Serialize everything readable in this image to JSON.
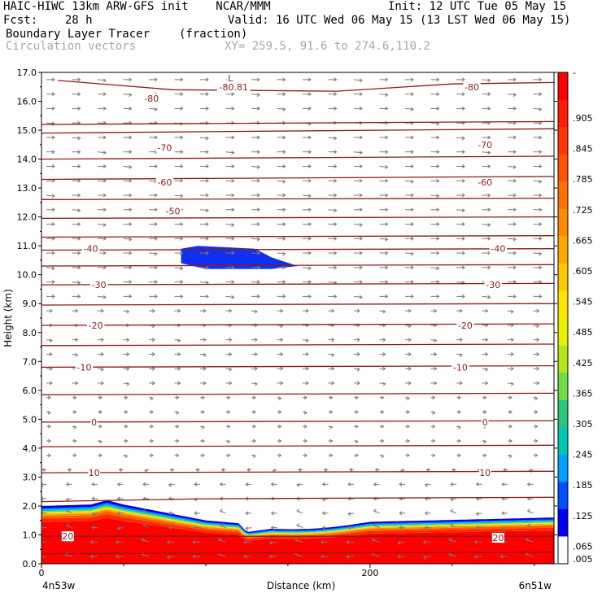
{
  "header": {
    "model_line": "HAIC-HIWC 13km ARW-GFS init    NCAR/MMM",
    "init_line": "Init: 12 UTC Tue 05 May 15",
    "fcst_label": "Fcst:    28 h",
    "valid_line": "Valid: 16 UTC Wed 06 May 15 (13 LST Wed 06 May 15)",
    "field_name": "Boundary Layer Tracer",
    "field_units": "(fraction)",
    "vector_name": "Circulation vectors",
    "xy_line": "XY= 259.5, 91.6 to 274.6,110.2"
  },
  "chart_data": {
    "type": "heatmap",
    "ylabel": "Height (km)",
    "xlabel": "Distance (km)",
    "ylim": [
      0,
      17
    ],
    "xlim": [
      0,
      312
    ],
    "y_ticks": [
      "0.0",
      "1.0",
      "2.0",
      "3.0",
      "4.0",
      "5.0",
      "6.0",
      "7.0",
      "8.0",
      "9.0",
      "10.0",
      "11.0",
      "12.0",
      "13.0",
      "14.0",
      "15.0",
      "16.0",
      "17.0"
    ],
    "x_ticks": [
      {
        "value": 0,
        "label": "0"
      },
      {
        "value": 200,
        "label": "200"
      }
    ],
    "x_end_labels": {
      "left": "4n53w",
      "right": "6n51w"
    },
    "colorbar": {
      "labels": [
        "-",
        ".905",
        ".845",
        ".785",
        ".725",
        ".665",
        ".605",
        ".545",
        ".485",
        ".425",
        ".365",
        ".305",
        ".245",
        ".185",
        ".125",
        ".065",
        ".005"
      ],
      "colors": [
        "#ff0000",
        "#ff1c00",
        "#ff3800",
        "#ff5400",
        "#ff7000",
        "#ff8c00",
        "#ffa800",
        "#ffc800",
        "#ffe600",
        "#e6f000",
        "#b4e61e",
        "#6edc46",
        "#28c878",
        "#00c8b4",
        "#00a0ff",
        "#0050ff",
        "#0000f0",
        "#ffffff"
      ]
    },
    "contours": {
      "color": "#8b1a1a",
      "lines": [
        {
          "level": "-80",
          "pts": [
            [
              10,
              16.72
            ],
            [
              80,
              16.4
            ],
            [
              180,
              16.35
            ],
            [
              250,
              16.6
            ],
            [
              312,
              16.65
            ]
          ],
          "labels": [
            {
              "x": 67,
              "y": 16.1,
              "text": "-80"
            },
            {
              "x": 262,
              "y": 16.5,
              "text": "-80"
            }
          ]
        },
        {
          "level": "-80.81",
          "pts": [],
          "labels": [
            {
              "x": 117,
              "y": 16.5,
              "text": "-80.81"
            },
            {
              "x": 115,
              "y": 16.8,
              "text": "L"
            }
          ]
        },
        {
          "level": "-75",
          "pts": [
            [
              0,
              15.2
            ],
            [
              312,
              15.3
            ]
          ],
          "labels": []
        },
        {
          "level": "-70",
          "pts": [
            [
              0,
              14.9
            ],
            [
              312,
              15.05
            ]
          ],
          "labels": [
            {
              "x": 75,
              "y": 14.4,
              "text": "-70"
            },
            {
              "x": 270,
              "y": 14.5,
              "text": "-70"
            }
          ]
        },
        {
          "level": "-65",
          "pts": [
            [
              0,
              14.0
            ],
            [
              312,
              14.1
            ]
          ],
          "labels": []
        },
        {
          "level": "-60",
          "pts": [
            [
              0,
              13.3
            ],
            [
              312,
              13.4
            ]
          ],
          "labels": [
            {
              "x": 75,
              "y": 13.2,
              "text": "-60"
            },
            {
              "x": 270,
              "y": 13.2,
              "text": "-60"
            }
          ]
        },
        {
          "level": "-55",
          "pts": [
            [
              0,
              12.6
            ],
            [
              312,
              12.65
            ]
          ],
          "labels": []
        },
        {
          "level": "-50",
          "pts": [
            [
              0,
              11.95
            ],
            [
              312,
              12.0
            ]
          ],
          "labels": [
            {
              "x": 80,
              "y": 12.2,
              "text": "-50"
            }
          ]
        },
        {
          "level": "-45",
          "pts": [
            [
              0,
              11.3
            ],
            [
              312,
              11.35
            ]
          ],
          "labels": []
        },
        {
          "level": "-40",
          "pts": [
            [
              0,
              10.85
            ],
            [
              312,
              10.9
            ]
          ],
          "labels": [
            {
              "x": 30,
              "y": 10.9,
              "text": "-40"
            },
            {
              "x": 278,
              "y": 10.9,
              "text": "-40"
            }
          ]
        },
        {
          "level": "-35",
          "pts": [
            [
              0,
              10.3
            ],
            [
              312,
              10.35
            ]
          ],
          "labels": []
        },
        {
          "level": "-30",
          "pts": [
            [
              0,
              9.65
            ],
            [
              312,
              9.7
            ]
          ],
          "labels": [
            {
              "x": 35,
              "y": 9.65,
              "text": "-30"
            },
            {
              "x": 275,
              "y": 9.65,
              "text": "-30"
            }
          ]
        },
        {
          "level": "-25",
          "pts": [
            [
              0,
              8.95
            ],
            [
              312,
              9.0
            ]
          ],
          "labels": []
        },
        {
          "level": "-20",
          "pts": [
            [
              0,
              8.25
            ],
            [
              312,
              8.3
            ]
          ],
          "labels": [
            {
              "x": 33,
              "y": 8.25,
              "text": "-20"
            },
            {
              "x": 258,
              "y": 8.25,
              "text": "-20"
            }
          ]
        },
        {
          "level": "-15",
          "pts": [
            [
              0,
              7.55
            ],
            [
              312,
              7.6
            ]
          ],
          "labels": []
        },
        {
          "level": "-10",
          "pts": [
            [
              0,
              6.8
            ],
            [
              312,
              6.85
            ]
          ],
          "labels": [
            {
              "x": 26,
              "y": 6.8,
              "text": "-10"
            },
            {
              "x": 255,
              "y": 6.8,
              "text": "-10"
            }
          ]
        },
        {
          "level": "-5",
          "pts": [
            [
              0,
              5.85
            ],
            [
              312,
              5.9
            ]
          ],
          "labels": []
        },
        {
          "level": "0",
          "pts": [
            [
              0,
              4.9
            ],
            [
              312,
              4.95
            ]
          ],
          "labels": [
            {
              "x": 32,
              "y": 4.9,
              "text": "0"
            },
            {
              "x": 270,
              "y": 4.9,
              "text": "0"
            }
          ]
        },
        {
          "level": "5",
          "pts": [
            [
              0,
              4.05
            ],
            [
              312,
              4.1
            ]
          ],
          "labels": []
        },
        {
          "level": "10",
          "pts": [
            [
              0,
              3.15
            ],
            [
              312,
              3.2
            ]
          ],
          "labels": [
            {
              "x": 32,
              "y": 3.15,
              "text": "10"
            },
            {
              "x": 270,
              "y": 3.15,
              "text": "10"
            }
          ]
        },
        {
          "level": "15",
          "pts": [
            [
              0,
              2.15
            ],
            [
              100,
              2.25
            ],
            [
              312,
              2.3
            ]
          ],
          "labels": []
        },
        {
          "level": "20",
          "pts": [
            [
              0,
              0.95
            ],
            [
              312,
              0.95
            ]
          ],
          "labels": [
            {
              "x": 16,
              "y": 0.95,
              "text": "20"
            },
            {
              "x": 278,
              "y": 0.9,
              "text": "20"
            }
          ]
        },
        {
          "level": "25",
          "pts": [
            [
              0,
              0.35
            ],
            [
              312,
              0.4
            ]
          ],
          "labels": []
        }
      ]
    },
    "tracer": {
      "bl_top": [
        [
          0,
          2.0
        ],
        [
          30,
          2.05
        ],
        [
          40,
          2.2
        ],
        [
          50,
          2.05
        ],
        [
          100,
          1.5
        ],
        [
          120,
          1.4
        ],
        [
          125,
          1.1
        ],
        [
          140,
          1.3
        ],
        [
          200,
          1.45
        ],
        [
          312,
          1.6
        ]
      ],
      "upper_anvil": [
        [
          85,
          10.9
        ],
        [
          95,
          11.0
        ],
        [
          130,
          10.9
        ],
        [
          140,
          10.6
        ],
        [
          156,
          10.3
        ],
        [
          140,
          10.2
        ],
        [
          100,
          10.2
        ],
        [
          85,
          10.4
        ]
      ]
    },
    "vectors": {
      "description": "circulation vectors: westward near surface below ~3 km, eastward aloft",
      "low_dir": -1,
      "high_dir": 1,
      "transition_km": 3.5
    }
  }
}
